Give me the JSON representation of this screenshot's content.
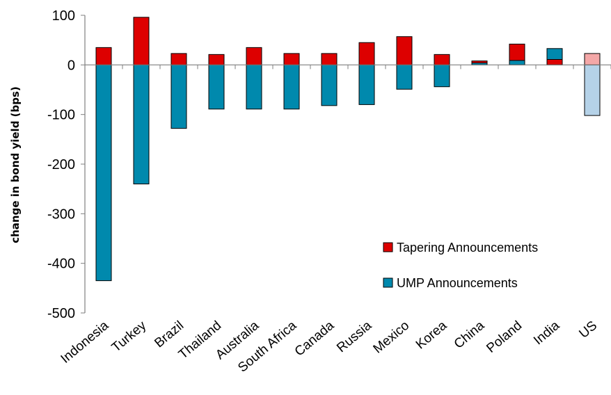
{
  "chart_data": {
    "type": "bar",
    "ylabel": "change in bond yield (bps)",
    "ylim": [
      -500,
      100
    ],
    "yticks": [
      100,
      0,
      -100,
      -200,
      -300,
      -400,
      -500
    ],
    "grid": false,
    "legend_position": "lower-right inside plot",
    "categories": [
      "Indonesia",
      "Turkey",
      "Brazil",
      "Thailand",
      "Australia",
      "South Africa",
      "Canada",
      "Russia",
      "Mexico",
      "Korea",
      "China",
      "Poland",
      "India",
      "US"
    ],
    "series": [
      {
        "name": "Tapering Announcements",
        "color": "#dd0000",
        "values": [
          35,
          96,
          23,
          21,
          35,
          23,
          23,
          45,
          57,
          21,
          8,
          42,
          11,
          23
        ]
      },
      {
        "name": "UMP Announcements",
        "color": "#0089ad",
        "values": [
          -435,
          -240,
          -128,
          -89,
          -89,
          -89,
          -82,
          -80,
          -49,
          -44,
          4,
          9,
          33,
          -102
        ]
      }
    ],
    "highlight": {
      "category": "US",
      "tapering_color": "#f4a7a7",
      "ump_color": "#b5d2e8"
    }
  }
}
